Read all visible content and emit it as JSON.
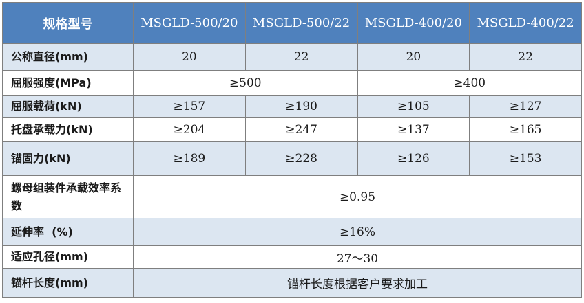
{
  "header": {
    "label": "规格型号",
    "models": [
      "MSGLD-500/20",
      "MSGLD-500/22",
      "MSGLD-400/20",
      "MSGLD-400/22"
    ]
  },
  "rows": {
    "nominal_diameter": {
      "label": "公称直径(mm)",
      "values": [
        "20",
        "22",
        "20",
        "22"
      ]
    },
    "yield_strength": {
      "label": "屈服强度(MPa)",
      "values": [
        "≥500",
        "≥400"
      ]
    },
    "yield_load": {
      "label": "屈服载荷(kN)",
      "values": [
        "≥157",
        "≥190",
        "≥105",
        "≥127"
      ]
    },
    "tray_capacity": {
      "label": "托盘承载力(kN)",
      "values": [
        "≥204",
        "≥247",
        "≥137",
        "≥165"
      ]
    },
    "anchoring_force": {
      "label": "锚固力(kN)",
      "values": [
        "≥189",
        "≥228",
        "≥126",
        "≥153"
      ]
    },
    "nut_efficiency": {
      "label": "螺母组装件承载效率系数",
      "value": "≥0.95"
    },
    "elongation": {
      "label": "延伸率  (%)",
      "value": "≥16%"
    },
    "hole_diameter": {
      "label": "适应孔径(mm)",
      "value": "27～30"
    },
    "bolt_length": {
      "label": "锚杆长度(mm)",
      "value": "锚杆长度根据客户要求加工"
    }
  },
  "colors": {
    "header_bg": "#4f81bd",
    "header_text": "#ffffff",
    "shade_row": "#dce6f1",
    "border": "#7f7f7f"
  }
}
